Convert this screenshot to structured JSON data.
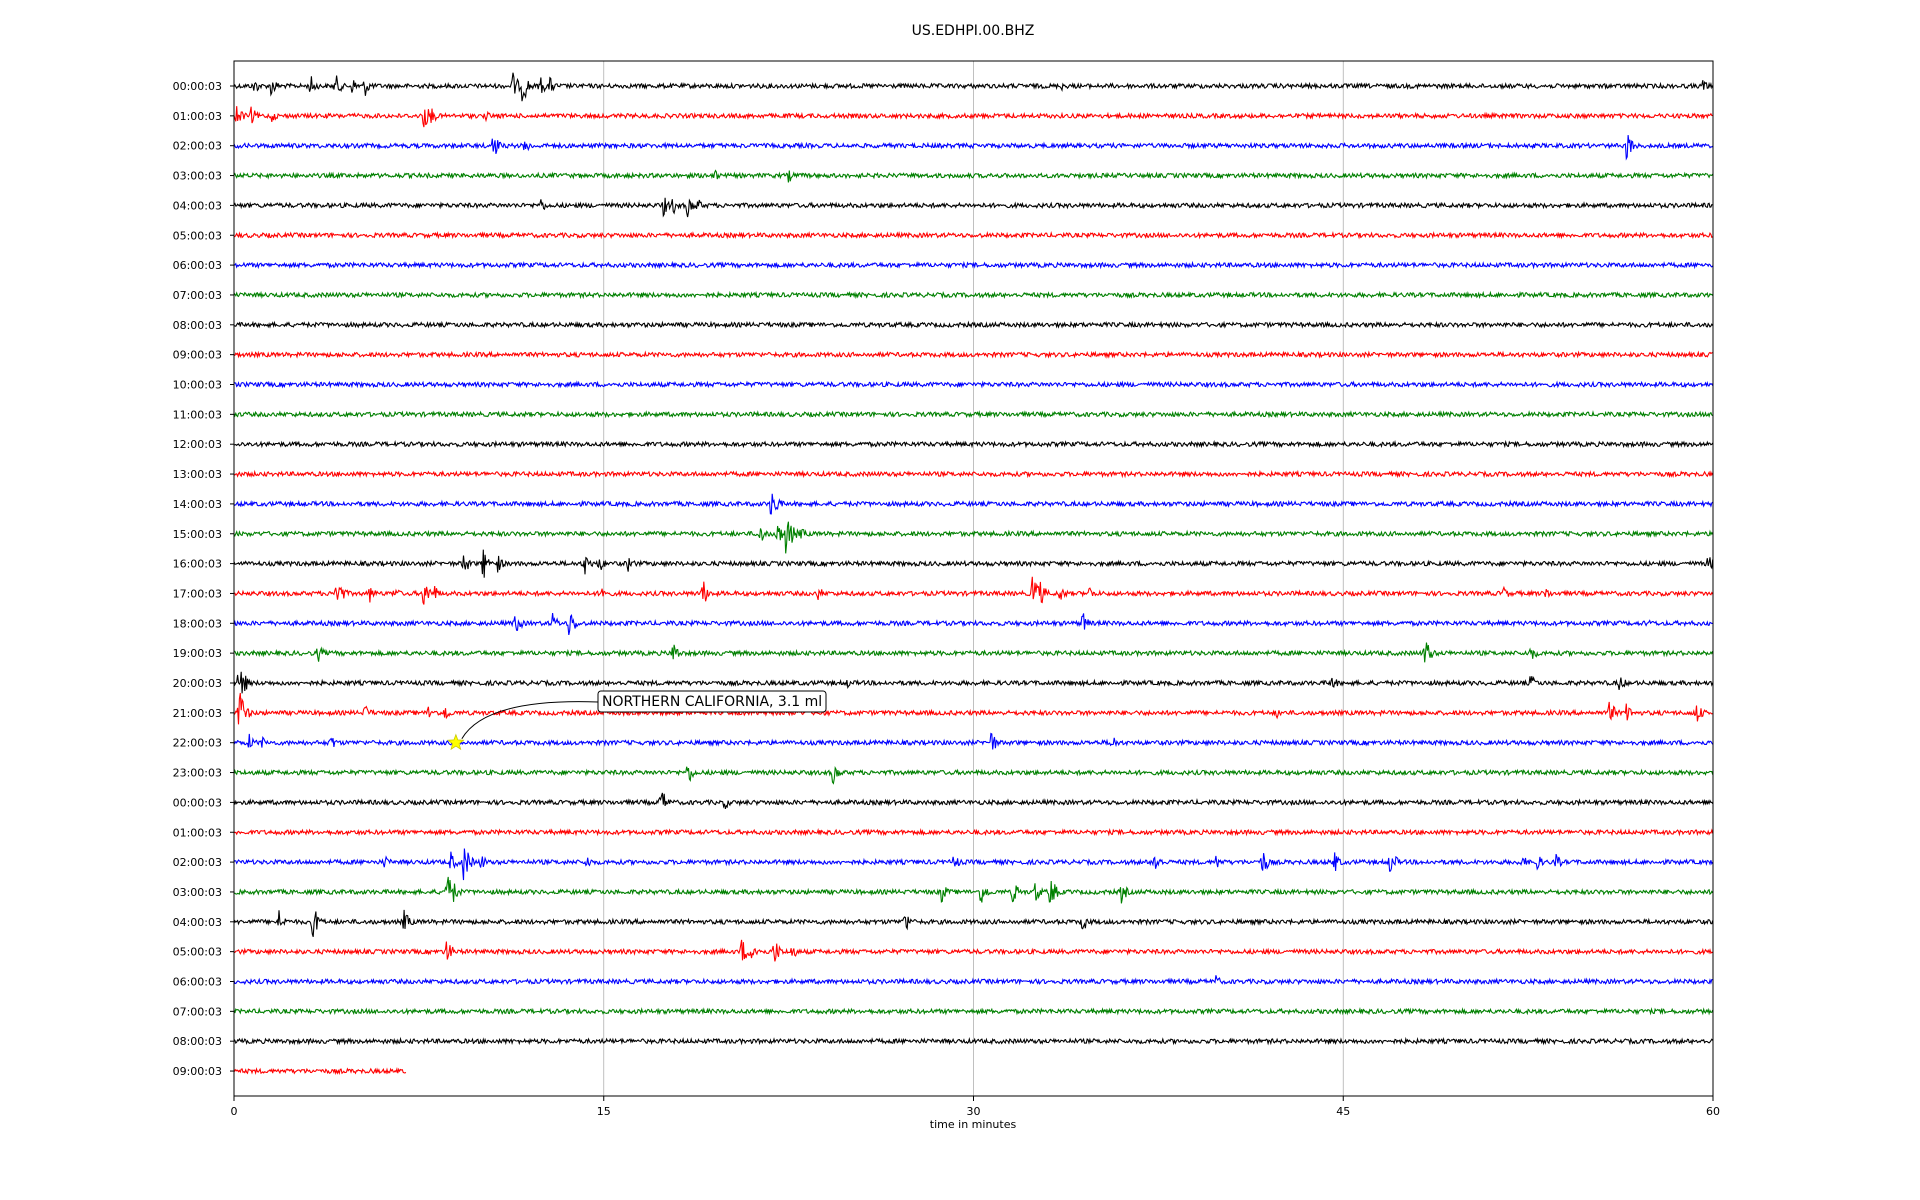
{
  "chart_data": {
    "type": "line",
    "title": "US.EDHPI.00.BHZ",
    "xlabel": "time in minutes",
    "ylabel": "",
    "xlim": [
      0,
      60
    ],
    "x_ticks": [
      "0",
      "15",
      "30",
      "45",
      "60"
    ],
    "grid": "vertical",
    "colors": [
      "#000000",
      "#ff0000",
      "#0000ff",
      "#008000"
    ],
    "row_labels": [
      "00:00:03",
      "01:00:03",
      "02:00:03",
      "03:00:03",
      "04:00:03",
      "05:00:03",
      "06:00:03",
      "07:00:03",
      "08:00:03",
      "09:00:03",
      "10:00:03",
      "11:00:03",
      "12:00:03",
      "13:00:03",
      "14:00:03",
      "15:00:03",
      "16:00:03",
      "17:00:03",
      "18:00:03",
      "19:00:03",
      "20:00:03",
      "21:00:03",
      "22:00:03",
      "23:00:03",
      "00:00:03",
      "01:00:03",
      "02:00:03",
      "03:00:03",
      "04:00:03",
      "05:00:03",
      "06:00:03",
      "07:00:03",
      "08:00:03",
      "09:00:03"
    ],
    "last_row_end_minute": 7,
    "events": [
      [
        [
          0.8,
          10
        ],
        [
          1.5,
          12
        ],
        [
          3.1,
          12
        ],
        [
          4.1,
          14
        ],
        [
          4.8,
          10
        ],
        [
          5.3,
          12
        ],
        [
          11.3,
          16
        ],
        [
          11.7,
          20
        ],
        [
          12.4,
          12
        ],
        [
          12.8,
          10
        ],
        [
          33.6,
          6
        ],
        [
          59.6,
          8
        ]
      ],
      [
        [
          0.1,
          14
        ],
        [
          0.7,
          10
        ],
        [
          1.5,
          8
        ],
        [
          7.7,
          16
        ],
        [
          8.0,
          10
        ],
        [
          10.2,
          6
        ]
      ],
      [
        [
          10.5,
          16
        ],
        [
          11.8,
          10
        ],
        [
          56.5,
          18
        ]
      ],
      [
        [
          19.4,
          10
        ],
        [
          22.5,
          8
        ]
      ],
      [
        [
          12.4,
          10
        ],
        [
          17.4,
          12
        ],
        [
          17.8,
          10
        ],
        [
          18.4,
          14
        ],
        [
          18.8,
          8
        ]
      ],
      [],
      [],
      [],
      [],
      [],
      [],
      [],
      [],
      [],
      [
        [
          21.8,
          22
        ]
      ],
      [
        [
          21.3,
          14
        ],
        [
          22.0,
          16
        ],
        [
          22.4,
          28
        ],
        [
          23.0,
          8
        ]
      ],
      [
        [
          9.3,
          14
        ],
        [
          10.1,
          18
        ],
        [
          10.7,
          10
        ],
        [
          14.2,
          14
        ],
        [
          14.8,
          10
        ],
        [
          16.0,
          10
        ],
        [
          59.8,
          10
        ]
      ],
      [
        [
          4.1,
          18
        ],
        [
          4.3,
          12
        ],
        [
          5.5,
          10
        ],
        [
          6.5,
          8
        ],
        [
          7.7,
          18
        ],
        [
          8.1,
          10
        ],
        [
          14.9,
          12
        ],
        [
          19.0,
          16
        ],
        [
          23.7,
          8
        ],
        [
          32.4,
          26
        ],
        [
          32.7,
          14
        ],
        [
          33.5,
          10
        ],
        [
          34.7,
          8
        ],
        [
          51.5,
          8
        ],
        [
          53.2,
          8
        ]
      ],
      [
        [
          11.4,
          14
        ],
        [
          12.9,
          12
        ],
        [
          13.6,
          18
        ],
        [
          34.4,
          14
        ],
        [
          57.3,
          6
        ]
      ],
      [
        [
          3.4,
          10
        ],
        [
          17.8,
          14
        ],
        [
          48.3,
          20
        ],
        [
          52.6,
          10
        ]
      ],
      [
        [
          0.2,
          26
        ],
        [
          24.9,
          6
        ],
        [
          44.5,
          10
        ],
        [
          52.6,
          10
        ],
        [
          56.2,
          10
        ]
      ],
      [
        [
          0.2,
          30
        ],
        [
          5.3,
          10
        ],
        [
          7.9,
          10
        ],
        [
          8.5,
          12
        ],
        [
          42.3,
          6
        ],
        [
          55.8,
          14
        ],
        [
          56.5,
          12
        ],
        [
          59.3,
          14
        ]
      ],
      [
        [
          0.6,
          10
        ],
        [
          1.1,
          8
        ],
        [
          3.9,
          10
        ],
        [
          30.7,
          14
        ],
        [
          35.6,
          10
        ]
      ],
      [
        [
          18.4,
          14
        ],
        [
          24.3,
          14
        ]
      ],
      [
        [
          17.3,
          18
        ],
        [
          19.9,
          8
        ]
      ],
      [],
      [
        [
          6.1,
          8
        ],
        [
          8.8,
          12
        ],
        [
          9.3,
          24
        ],
        [
          10.0,
          10
        ],
        [
          14.3,
          8
        ],
        [
          29.2,
          10
        ],
        [
          37.3,
          16
        ],
        [
          39.8,
          10
        ],
        [
          41.7,
          16
        ],
        [
          44.6,
          14
        ],
        [
          46.9,
          16
        ],
        [
          52.2,
          10
        ],
        [
          52.8,
          12
        ],
        [
          53.6,
          10
        ]
      ],
      [
        [
          8.6,
          26
        ],
        [
          8.9,
          12
        ],
        [
          28.7,
          12
        ],
        [
          30.3,
          16
        ],
        [
          31.6,
          14
        ],
        [
          32.5,
          12
        ],
        [
          33.1,
          20
        ],
        [
          36.0,
          12
        ]
      ],
      [
        [
          1.8,
          14
        ],
        [
          3.2,
          20
        ],
        [
          6.9,
          14
        ],
        [
          27.2,
          14
        ],
        [
          34.4,
          12
        ]
      ],
      [
        [
          8.6,
          16
        ],
        [
          20.6,
          16
        ],
        [
          21.0,
          14
        ],
        [
          21.9,
          16
        ],
        [
          22.6,
          10
        ]
      ],
      [
        [
          39.8,
          8
        ]
      ],
      [],
      [],
      []
    ],
    "annotation": {
      "text": "NORTHERN CALIFORNIA, 3.1 ml",
      "row": 22,
      "minute": 9.0
    }
  }
}
